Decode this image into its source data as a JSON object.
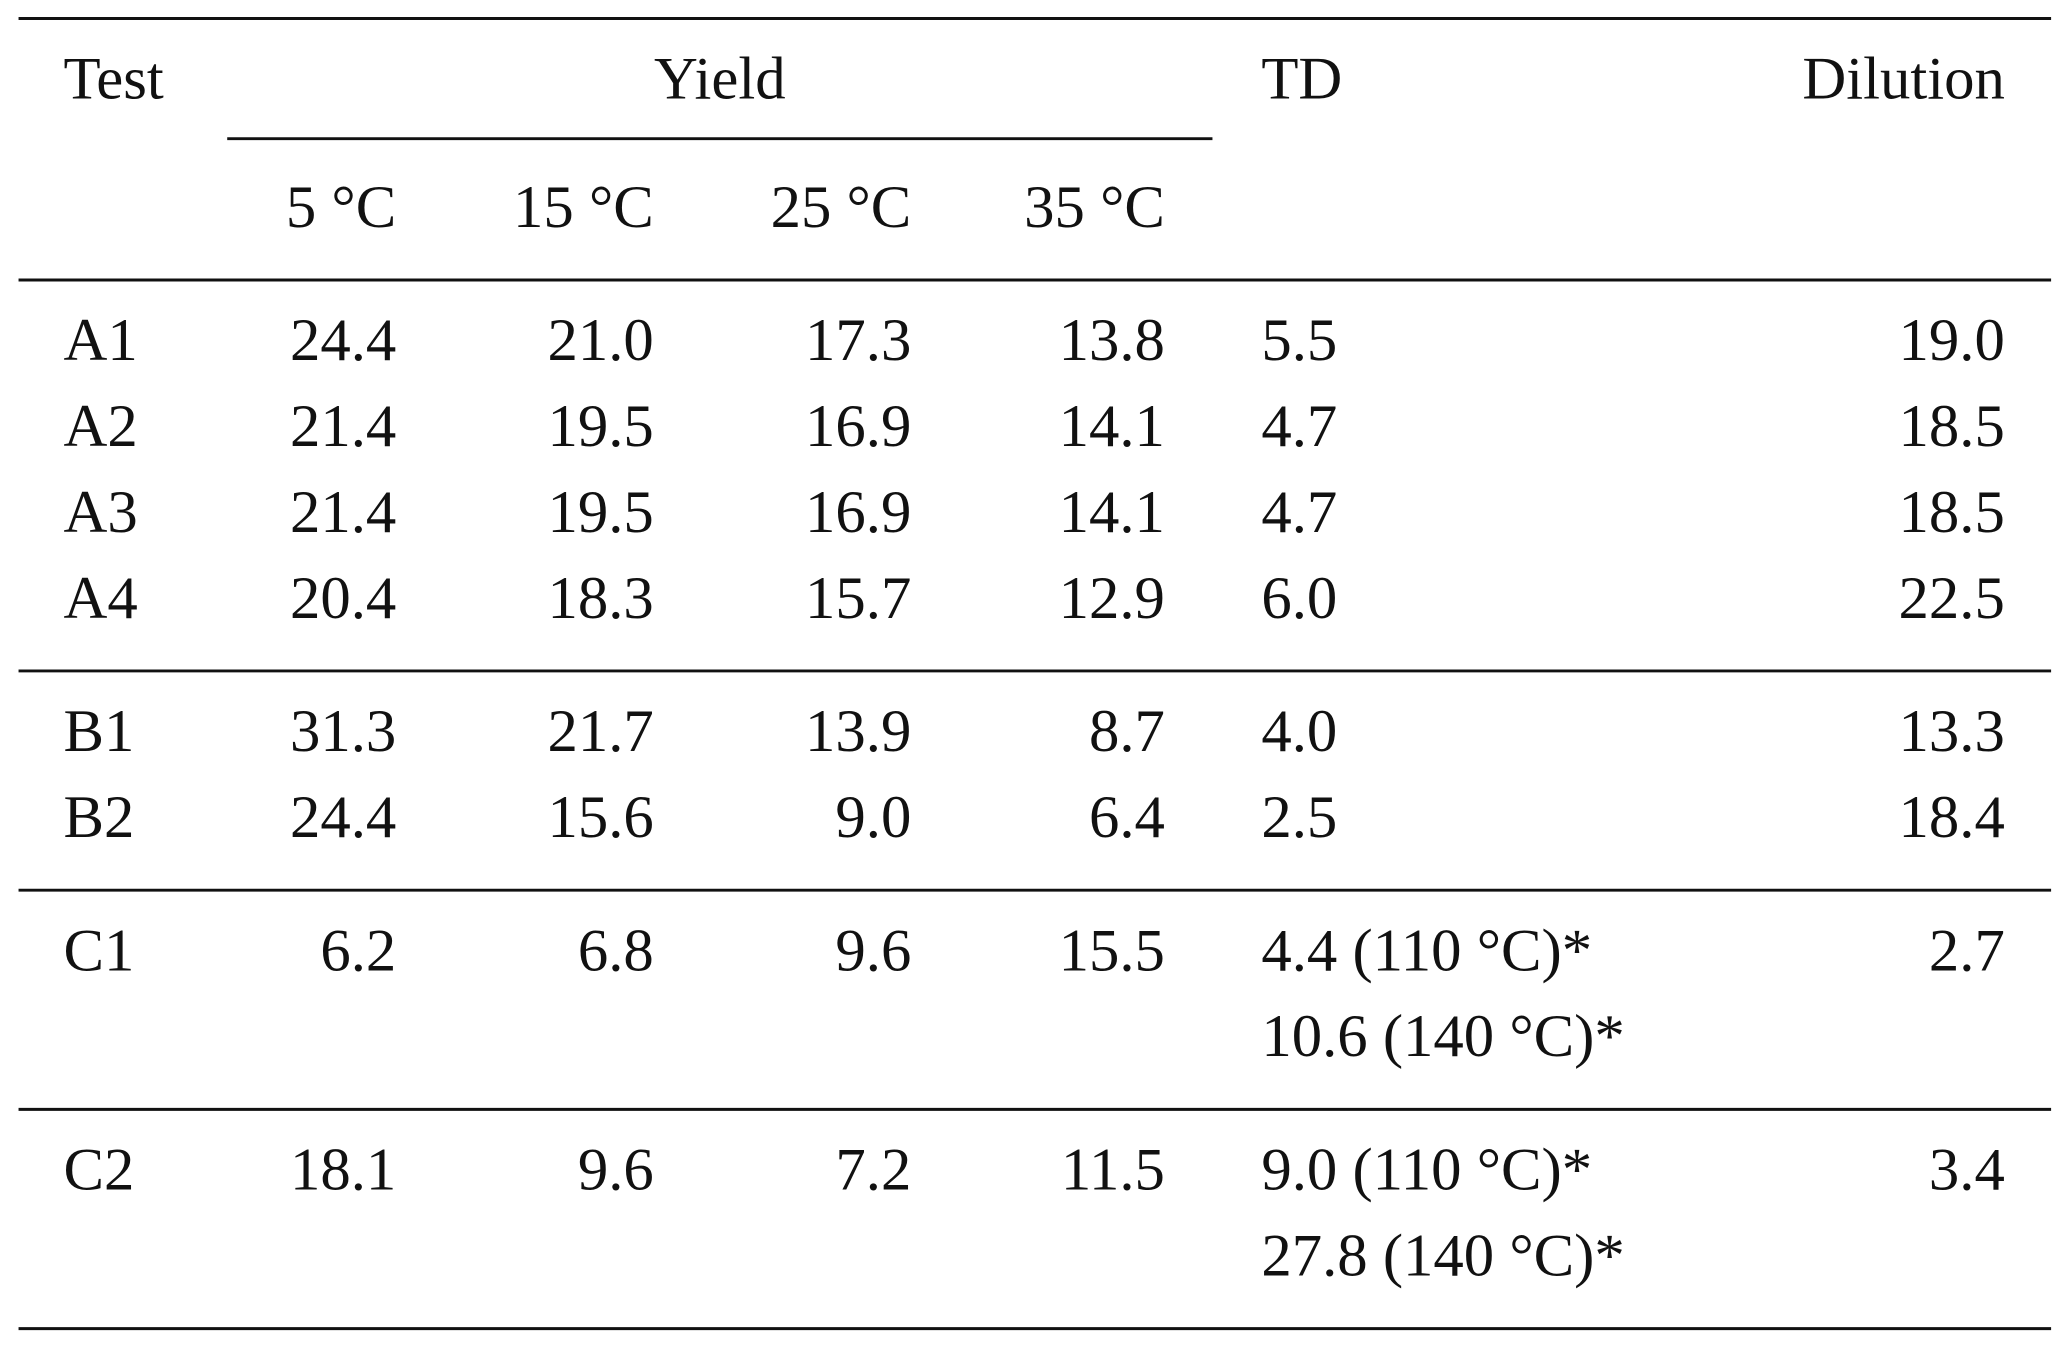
{
  "table": {
    "header": {
      "test": "Test",
      "yield": "Yield",
      "td": "TD",
      "dilution": "Dilution",
      "temps": [
        "5 °C",
        "15 °C",
        "25 °C",
        "35 °C"
      ]
    },
    "groups": [
      [
        {
          "test": "A1",
          "yield": [
            "24.4",
            "21.0",
            "17.3",
            "13.8"
          ],
          "td": [
            "5.5"
          ],
          "dilution": "19.0"
        },
        {
          "test": "A2",
          "yield": [
            "21.4",
            "19.5",
            "16.9",
            "14.1"
          ],
          "td": [
            "4.7"
          ],
          "dilution": "18.5"
        },
        {
          "test": "A3",
          "yield": [
            "21.4",
            "19.5",
            "16.9",
            "14.1"
          ],
          "td": [
            "4.7"
          ],
          "dilution": "18.5"
        },
        {
          "test": "A4",
          "yield": [
            "20.4",
            "18.3",
            "15.7",
            "12.9"
          ],
          "td": [
            "6.0"
          ],
          "dilution": "22.5"
        }
      ],
      [
        {
          "test": "B1",
          "yield": [
            "31.3",
            "21.7",
            "13.9",
            "8.7"
          ],
          "td": [
            "4.0"
          ],
          "dilution": "13.3"
        },
        {
          "test": "B2",
          "yield": [
            "24.4",
            "15.6",
            "9.0",
            "6.4"
          ],
          "td": [
            "2.5"
          ],
          "dilution": "18.4"
        }
      ],
      [
        {
          "test": "C1",
          "yield": [
            "6.2",
            "6.8",
            "9.6",
            "15.5"
          ],
          "td": [
            "4.4 (110 °C)*",
            "10.6 (140 °C)*"
          ],
          "dilution": "2.7"
        }
      ],
      [
        {
          "test": "C2",
          "yield": [
            "18.1",
            "9.6",
            "7.2",
            "11.5"
          ],
          "td": [
            "9.0 (110 °C)*",
            "27.8 (140 °C)*"
          ],
          "dilution": "3.4"
        }
      ]
    ]
  }
}
